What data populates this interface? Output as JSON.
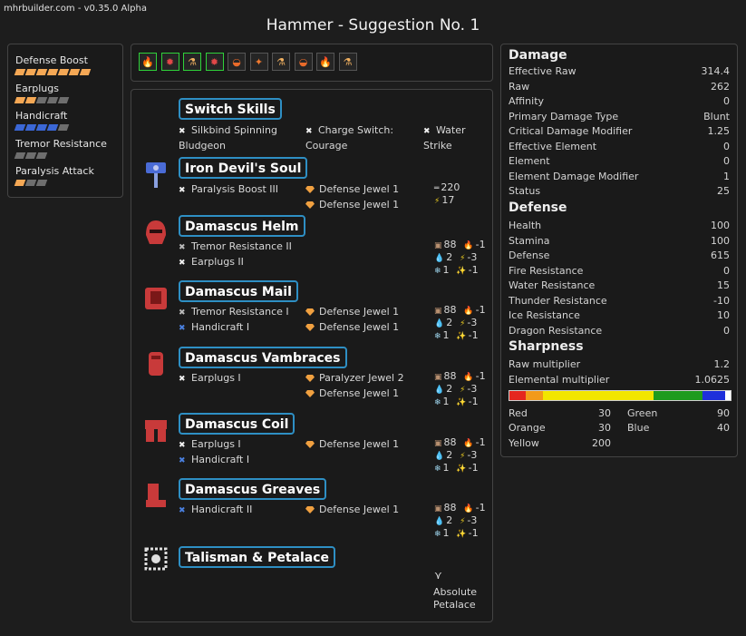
{
  "header": {
    "version": "mhrbuilder.com - v0.35.0 Alpha",
    "title": "Hammer - Suggestion No. 1"
  },
  "skills": [
    {
      "name": "Defense Boost",
      "level": 7,
      "max": 7,
      "color": "#f5a855"
    },
    {
      "name": "Earplugs",
      "level": 2,
      "max": 5,
      "color": "#f5a855"
    },
    {
      "name": "Handicraft",
      "level": 4,
      "max": 5,
      "color": "#3b67d6"
    },
    {
      "name": "Tremor Resistance",
      "level": 0,
      "max": 3,
      "color": "#f5a855"
    },
    {
      "name": "Paralysis Attack",
      "level": 1,
      "max": 3,
      "color": "#f5a855"
    }
  ],
  "decorations": [
    {
      "icon": "flame-jar-icon",
      "selected": true
    },
    {
      "icon": "jaw-icon",
      "selected": true
    },
    {
      "icon": "potion-icon",
      "selected": true
    },
    {
      "icon": "jaw-icon",
      "selected": true
    },
    {
      "icon": "tub-icon",
      "selected": false
    },
    {
      "icon": "sparkle-potion-icon",
      "selected": false
    },
    {
      "icon": "potion-icon",
      "selected": false
    },
    {
      "icon": "tub-icon",
      "selected": false
    },
    {
      "icon": "flame-jar-icon",
      "selected": false
    },
    {
      "icon": "potion-icon",
      "selected": false
    }
  ],
  "build": {
    "switch": {
      "title": "Switch Skills",
      "skills": [
        {
          "line1": "Silkbind Spinning",
          "line2": "Bludgeon"
        },
        {
          "line1": "Charge Switch:",
          "line2": "Courage"
        },
        {
          "line1": "Water",
          "line2": "Strike"
        }
      ]
    },
    "weapon": {
      "name": "Iron Devil's Soul",
      "skills": [
        "Paralysis Boost III"
      ],
      "jewels": [
        "Defense Jewel 1",
        "Defense Jewel 1"
      ],
      "attack": "220",
      "element": "17"
    },
    "armor": [
      {
        "name": "Damascus Helm",
        "icon": "helm-icon",
        "skills": [
          {
            "name": "Tremor Resistance II",
            "type": "g"
          },
          {
            "name": "Earplugs II",
            "type": "w"
          }
        ],
        "jewels": [],
        "defense": "88",
        "fire": "-1",
        "water": "2",
        "thunder": "-3",
        "ice": "1",
        "dragon": "-1"
      },
      {
        "name": "Damascus Mail",
        "icon": "mail-icon",
        "skills": [
          {
            "name": "Tremor Resistance I",
            "type": "g"
          },
          {
            "name": "Handicraft I",
            "type": "b"
          }
        ],
        "jewels": [
          "Defense Jewel 1",
          "Defense Jewel 1"
        ],
        "defense": "88",
        "fire": "-1",
        "water": "2",
        "thunder": "-3",
        "ice": "1",
        "dragon": "-1"
      },
      {
        "name": "Damascus Vambraces",
        "icon": "vambraces-icon",
        "skills": [
          {
            "name": "Earplugs I",
            "type": "w"
          }
        ],
        "jewels": [
          "Paralyzer Jewel 2",
          "Defense Jewel 1"
        ],
        "defense": "88",
        "fire": "-1",
        "water": "2",
        "thunder": "-3",
        "ice": "1",
        "dragon": "-1"
      },
      {
        "name": "Damascus Coil",
        "icon": "coil-icon",
        "skills": [
          {
            "name": "Earplugs I",
            "type": "w"
          },
          {
            "name": "Handicraft I",
            "type": "b"
          }
        ],
        "jewels": [
          "Defense Jewel 1"
        ],
        "defense": "88",
        "fire": "-1",
        "water": "2",
        "thunder": "-3",
        "ice": "1",
        "dragon": "-1"
      },
      {
        "name": "Damascus Greaves",
        "icon": "greaves-icon",
        "skills": [
          {
            "name": "Handicraft II",
            "type": "b"
          }
        ],
        "jewels": [
          "Defense Jewel 1"
        ],
        "defense": "88",
        "fire": "-1",
        "water": "2",
        "thunder": "-3",
        "ice": "1",
        "dragon": "-1"
      }
    ],
    "talisman": {
      "name": "Talisman & Petalace",
      "petalace_line1": "Absolute",
      "petalace_line2": "Petalace"
    }
  },
  "stats": {
    "damage_title": "Damage",
    "damage": [
      {
        "label": "Effective Raw",
        "value": "314.4"
      },
      {
        "label": "Raw",
        "value": "262"
      },
      {
        "label": "Affinity",
        "value": "0"
      },
      {
        "label": "Primary Damage Type",
        "value": "Blunt"
      },
      {
        "label": "Critical Damage Modifier",
        "value": "1.25"
      },
      {
        "label": "Effective Element",
        "value": "0"
      },
      {
        "label": "Element",
        "value": "0"
      },
      {
        "label": "Element Damage Modifier",
        "value": "1"
      },
      {
        "label": "Status",
        "value": "25"
      }
    ],
    "defense_title": "Defense",
    "defense": [
      {
        "label": "Health",
        "value": "100"
      },
      {
        "label": "Stamina",
        "value": "100"
      },
      {
        "label": "Defense",
        "value": "615"
      },
      {
        "label": "Fire Resistance",
        "value": "0"
      },
      {
        "label": "Water Resistance",
        "value": "15"
      },
      {
        "label": "Thunder Resistance",
        "value": "-10"
      },
      {
        "label": "Ice Resistance",
        "value": "10"
      },
      {
        "label": "Dragon Resistance",
        "value": "0"
      }
    ],
    "sharpness_title": "Sharpness",
    "sharpness_mult": [
      {
        "label": "Raw multiplier",
        "value": "1.2"
      },
      {
        "label": "Elemental multiplier",
        "value": "1.0625"
      }
    ],
    "sharpness": [
      {
        "label": "Red",
        "value": 30,
        "color": "#e5261f"
      },
      {
        "label": "Orange",
        "value": 30,
        "color": "#f29a1a"
      },
      {
        "label": "Yellow",
        "value": 200,
        "color": "#f2e600"
      },
      {
        "label": "Green",
        "value": 90,
        "color": "#1e9b1e"
      },
      {
        "label": "Blue",
        "value": 40,
        "color": "#1e2fdb"
      }
    ],
    "sharpness_max": 400
  }
}
